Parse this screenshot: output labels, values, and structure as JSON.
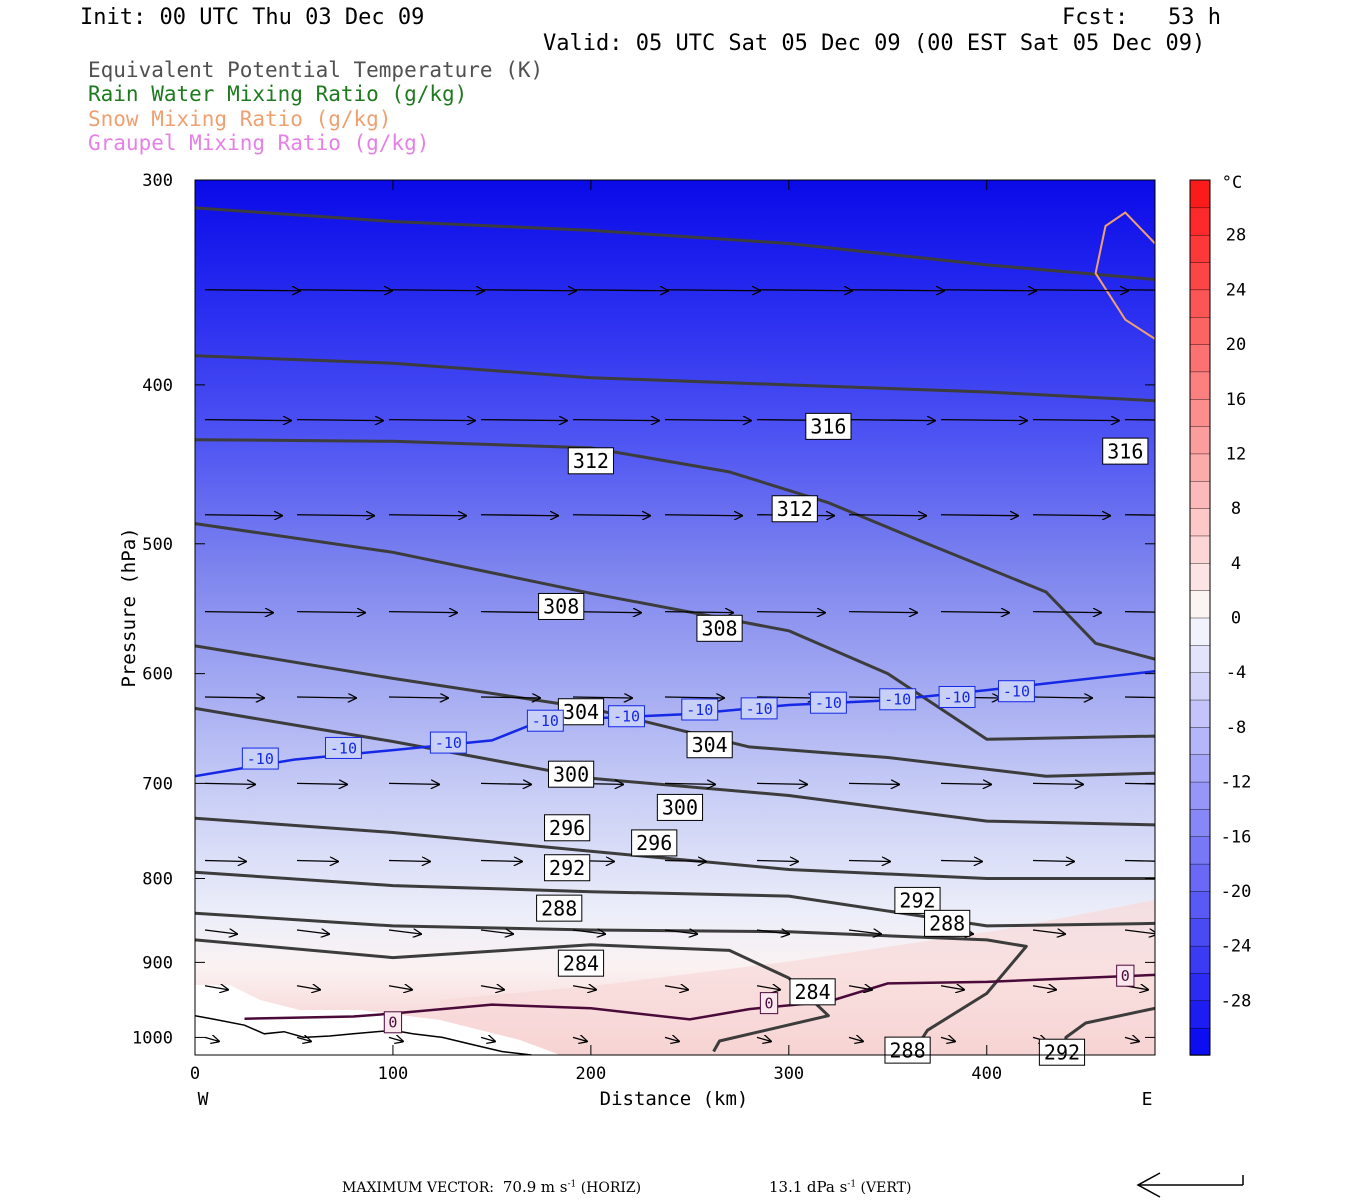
{
  "header": {
    "init": "Init: 00 UTC Thu 03 Dec 09",
    "fcst_label": "Fcst:",
    "fcst_value": "53 h",
    "valid": "Valid: 05 UTC Sat 05 Dec 09 (00 EST Sat 05 Dec 09)"
  },
  "legend_lines": [
    {
      "text": "Equivalent Potential Temperature (K)",
      "color": "#505050"
    },
    {
      "text": "Rain Water Mixing Ratio (g/kg)",
      "color": "#1e7a1e"
    },
    {
      "text": "Snow Mixing Ratio (g/kg)",
      "color": "#f0a070"
    },
    {
      "text": "Graupel Mixing Ratio (g/kg)",
      "color": "#e680e6"
    }
  ],
  "footer": {
    "max_vector_label": "MAXIMUM VECTOR:",
    "horiz_value": "70.9",
    "horiz_unit_base": "m s",
    "horiz_unit_exp": "-1",
    "horiz_tag": "(HORIZ)",
    "vert_value": "13.1",
    "vert_unit_base": "dPa s",
    "vert_unit_exp": "-1",
    "vert_tag": "(VERT)"
  },
  "chart_data": {
    "type": "cross-section",
    "xlabel": "Distance (km)",
    "ylabel": "Pressure (hPa)",
    "x_range": [
      0,
      485
    ],
    "y_range": [
      1025,
      300
    ],
    "x_ticks": [
      0,
      100,
      200,
      300,
      400
    ],
    "y_ticks": [
      300,
      400,
      500,
      600,
      700,
      800,
      900,
      1000
    ],
    "x_end_labels": {
      "left": "W",
      "right": "E"
    },
    "colorbar": {
      "unit": "°C",
      "range": [
        -32,
        32
      ],
      "labels": [
        28,
        24,
        20,
        16,
        12,
        8,
        4,
        0,
        -4,
        -8,
        -12,
        -16,
        -20,
        -24,
        -28
      ]
    },
    "theta_e_contours": [
      {
        "value": 316,
        "pts": [
          [
            0,
            312
          ],
          [
            100,
            318
          ],
          [
            200,
            322
          ],
          [
            300,
            328
          ],
          [
            400,
            338
          ],
          [
            485,
            345
          ]
        ],
        "labels": [
          [
            320,
            424
          ]
        ]
      },
      {
        "value": 316,
        "pts": [
          [
            0,
            384
          ],
          [
            100,
            388
          ],
          [
            200,
            396
          ],
          [
            300,
            400
          ],
          [
            400,
            404
          ],
          [
            485,
            409
          ]
        ],
        "labels": [
          [
            470,
            439
          ]
        ]
      },
      {
        "value": 312,
        "pts": [
          [
            0,
            432
          ],
          [
            100,
            433
          ],
          [
            200,
            437
          ],
          [
            270,
            452
          ],
          [
            320,
            472
          ],
          [
            370,
            500
          ],
          [
            430,
            535
          ],
          [
            455,
            575
          ],
          [
            485,
            588
          ]
        ],
        "labels": [
          [
            200,
            445
          ],
          [
            303,
            476
          ]
        ]
      },
      {
        "value": 308,
        "pts": [
          [
            0,
            486
          ],
          [
            100,
            506
          ],
          [
            200,
            536
          ],
          [
            300,
            565
          ],
          [
            350,
            600
          ],
          [
            400,
            658
          ],
          [
            485,
            655
          ]
        ],
        "labels": [
          [
            185,
            546
          ],
          [
            265,
            563
          ]
        ]
      },
      {
        "value": 304,
        "pts": [
          [
            0,
            577
          ],
          [
            100,
            604
          ],
          [
            200,
            630
          ],
          [
            280,
            665
          ],
          [
            350,
            675
          ],
          [
            430,
            693
          ],
          [
            485,
            690
          ]
        ],
        "labels": [
          [
            195,
            633
          ],
          [
            260,
            663
          ]
        ]
      },
      {
        "value": 300,
        "pts": [
          [
            0,
            630
          ],
          [
            100,
            660
          ],
          [
            200,
            695
          ],
          [
            300,
            712
          ],
          [
            400,
            738
          ],
          [
            485,
            742
          ]
        ],
        "labels": [
          [
            190,
            691
          ],
          [
            245,
            724
          ]
        ]
      },
      {
        "value": 296,
        "pts": [
          [
            0,
            735
          ],
          [
            100,
            750
          ],
          [
            200,
            770
          ],
          [
            300,
            790
          ],
          [
            400,
            800
          ],
          [
            485,
            800
          ]
        ],
        "labels": [
          [
            188,
            745
          ],
          [
            232,
            761
          ]
        ]
      },
      {
        "value": 292,
        "pts": [
          [
            0,
            793
          ],
          [
            100,
            808
          ],
          [
            200,
            815
          ],
          [
            300,
            820
          ],
          [
            400,
            855
          ],
          [
            485,
            852
          ]
        ],
        "labels": [
          [
            188,
            788
          ],
          [
            365,
            825
          ]
        ]
      },
      {
        "value": 288,
        "pts": [
          [
            0,
            840
          ],
          [
            100,
            855
          ],
          [
            200,
            860
          ],
          [
            300,
            862
          ],
          [
            400,
            872
          ],
          [
            420,
            880
          ],
          [
            400,
            940
          ],
          [
            370,
            990
          ],
          [
            362,
            1025
          ]
        ],
        "labels": [
          [
            184,
            834
          ],
          [
            380,
            852
          ],
          [
            360,
            1018
          ]
        ]
      },
      {
        "value": 284,
        "pts": [
          [
            0,
            872
          ],
          [
            100,
            894
          ],
          [
            200,
            878
          ],
          [
            270,
            885
          ],
          [
            300,
            920
          ],
          [
            320,
            970
          ],
          [
            265,
            1005
          ],
          [
            262,
            1020
          ]
        ],
        "labels": [
          [
            195,
            901
          ],
          [
            312,
            938
          ]
        ]
      },
      {
        "value": 292,
        "pts": [
          [
            485,
            960
          ],
          [
            450,
            980
          ],
          [
            440,
            1000
          ],
          [
            440,
            1010
          ],
          [
            430,
            1025
          ]
        ],
        "labels": [
          [
            438,
            1021
          ]
        ]
      }
    ],
    "zero_isotherm": {
      "value": 0,
      "pts": [
        [
          25,
          974
        ],
        [
          80,
          971
        ],
        [
          100,
          967
        ],
        [
          150,
          955
        ],
        [
          200,
          960
        ],
        [
          250,
          975
        ],
        [
          280,
          961
        ],
        [
          320,
          951
        ],
        [
          350,
          927
        ],
        [
          400,
          925
        ],
        [
          485,
          916
        ]
      ],
      "labels": [
        [
          100,
          979
        ],
        [
          290,
          953
        ],
        [
          470,
          917
        ]
      ]
    },
    "minus10_isotherm": {
      "value": -10,
      "pts": [
        [
          0,
          693
        ],
        [
          50,
          677
        ],
        [
          100,
          668
        ],
        [
          150,
          659
        ],
        [
          175,
          641
        ],
        [
          250,
          635
        ],
        [
          300,
          627
        ],
        [
          350,
          623
        ],
        [
          400,
          614
        ],
        [
          485,
          598
        ]
      ],
      "labels": [
        [
          33,
          676
        ],
        [
          75,
          666
        ],
        [
          128,
          661
        ],
        [
          177,
          641
        ],
        [
          218,
          637
        ],
        [
          255,
          631
        ],
        [
          285,
          630
        ],
        [
          320,
          625
        ],
        [
          355,
          622
        ],
        [
          385,
          620
        ],
        [
          415,
          615
        ]
      ]
    },
    "snow_contour": {
      "pts": [
        [
          485,
          328
        ],
        [
          470,
          314
        ],
        [
          460,
          320
        ],
        [
          455,
          342
        ],
        [
          470,
          365
        ],
        [
          485,
          375
        ]
      ]
    },
    "surface_trace": {
      "pts": [
        [
          0,
          970
        ],
        [
          10,
          975
        ],
        [
          25,
          983
        ],
        [
          35,
          995
        ],
        [
          45,
          992
        ],
        [
          55,
          1000
        ],
        [
          68,
          998
        ],
        [
          80,
          995
        ],
        [
          100,
          990
        ],
        [
          110,
          995
        ],
        [
          125,
          1000
        ],
        [
          140,
          1010
        ],
        [
          155,
          1020
        ],
        [
          170,
          1025
        ]
      ]
    },
    "wind_vector_count": 11
  }
}
